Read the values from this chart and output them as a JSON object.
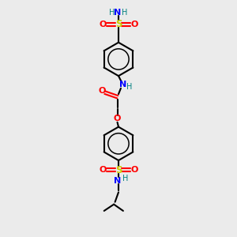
{
  "bg_color": "#ebebeb",
  "bond_color": "#000000",
  "colors": {
    "N": "#0000ff",
    "O": "#ff0000",
    "S": "#cccc00",
    "H": "#008080",
    "C": "#000000"
  },
  "figsize": [
    3.0,
    3.0
  ],
  "dpi": 100
}
